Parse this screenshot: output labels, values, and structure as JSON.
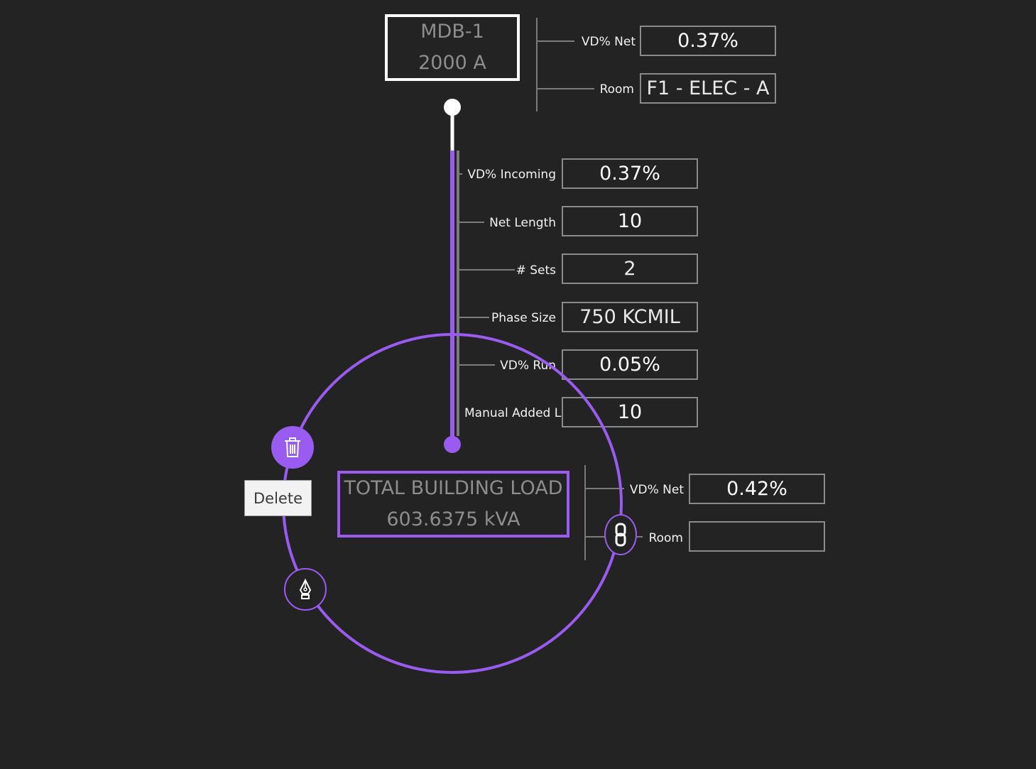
{
  "colors": {
    "background": "#232323",
    "accent": "#9a5cf0",
    "connector": "#ffffff",
    "field_border": "#8a8a8a"
  },
  "source_node": {
    "name": "MDB-1",
    "rating": "2000 A"
  },
  "source_props": {
    "vd_net_label": "VD% Net",
    "vd_net_value": "0.37%",
    "room_label": "Room",
    "room_value": "F1 - ELEC - A"
  },
  "feeder_props": [
    {
      "label": "VD% Incoming",
      "value": "0.37%"
    },
    {
      "label": "Net Length",
      "value": "10"
    },
    {
      "label": "# Sets",
      "value": "2"
    },
    {
      "label": "Phase Size",
      "value": "750 KCMIL"
    },
    {
      "label": "VD% Run",
      "value": "0.05%"
    },
    {
      "label": "Manual Added L",
      "value": "10"
    }
  ],
  "load_node": {
    "name": "TOTAL BUILDING LOAD",
    "load": "603.6375 kVA"
  },
  "load_props": {
    "vd_net_label": "VD% Net",
    "vd_net_value": "0.42%",
    "room_label": "Room",
    "room_value": ""
  },
  "radial_menu": {
    "delete_tooltip": "Delete",
    "icons": [
      "trash-icon",
      "pen-icon",
      "link-icon"
    ]
  }
}
